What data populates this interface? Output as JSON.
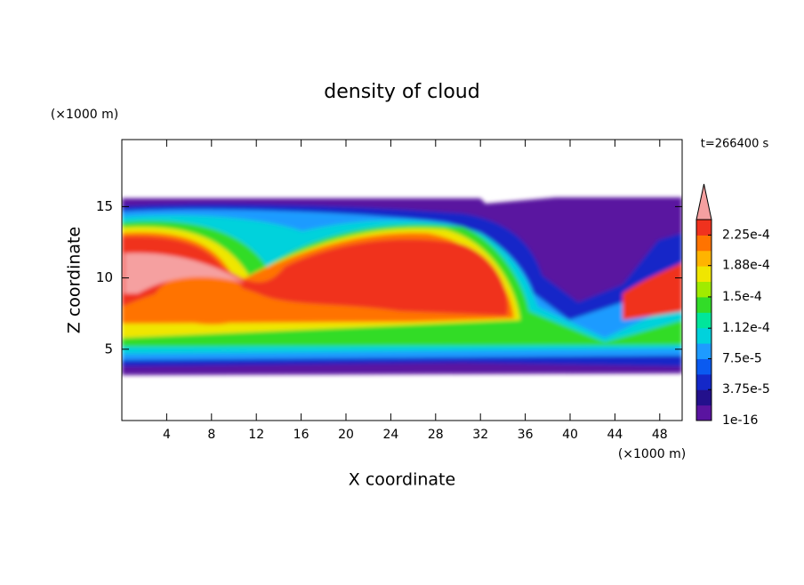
{
  "chart_data": {
    "type": "contour",
    "title": "density of cloud",
    "x_label": "X coordinate",
    "y_label": "Z coordinate",
    "x_unit": "(×1000 m)",
    "y_unit": "(×1000 m)",
    "time_label": "t=266400 s",
    "xlim": [
      0,
      50
    ],
    "ylim": [
      0,
      19.7
    ],
    "xticks": [
      4,
      8,
      12,
      16,
      20,
      24,
      28,
      32,
      36,
      40,
      44,
      48
    ],
    "yticks": [
      5,
      10,
      15
    ],
    "colorbar": {
      "clim": [
        1e-16,
        0.00024375
      ],
      "colors": [
        "#5a14a0",
        "#23108c",
        "#1428c8",
        "#0a5af0",
        "#1e9bff",
        "#00d2dc",
        "#00e69b",
        "#32dc28",
        "#a0eb00",
        "#f0e600",
        "#ffb400",
        "#ff7300",
        "#f0321e"
      ],
      "extend_color": "#f5a0a0",
      "ticks": [
        {
          "value": 1e-16,
          "label": "1e-16"
        },
        {
          "value": 3.75e-05,
          "label": "3.75e-5"
        },
        {
          "value": 7.5e-05,
          "label": "7.5e-5"
        },
        {
          "value": 0.000112,
          "label": "1.12e-4"
        },
        {
          "value": 0.00015,
          "label": "1.5e-4"
        },
        {
          "value": 0.000188,
          "label": "1.88e-4"
        },
        {
          "value": 0.000225,
          "label": "2.25e-4"
        }
      ]
    }
  }
}
